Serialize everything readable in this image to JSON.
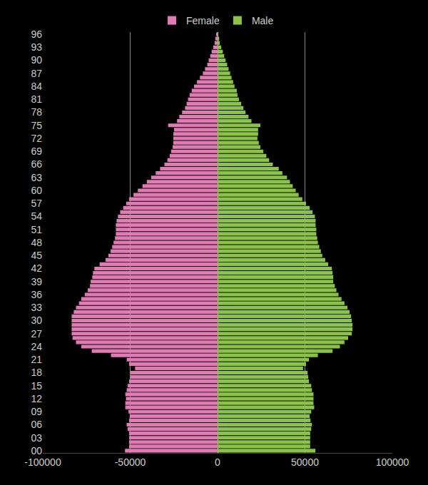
{
  "chart_data": {
    "type": "bar",
    "orientation": "horizontal",
    "stacked": true,
    "grid": true,
    "legend": "top",
    "categories": [
      "00",
      null,
      null,
      "03",
      null,
      null,
      "06",
      null,
      null,
      "09",
      null,
      null,
      "12",
      null,
      null,
      "15",
      null,
      null,
      "18",
      null,
      null,
      "21",
      null,
      null,
      "24",
      null,
      null,
      "27",
      null,
      null,
      "30",
      null,
      null,
      "33",
      null,
      null,
      "36",
      null,
      null,
      "39",
      null,
      null,
      "42",
      null,
      null,
      "45",
      null,
      null,
      "48",
      null,
      null,
      "51",
      null,
      null,
      "54",
      null,
      null,
      "57",
      null,
      null,
      "60",
      null,
      null,
      "63",
      null,
      null,
      "66",
      null,
      null,
      "69",
      null,
      null,
      "72",
      null,
      null,
      "75",
      null,
      null,
      "78",
      null,
      null,
      "81",
      null,
      null,
      "84",
      null,
      null,
      "87",
      null,
      null,
      "90",
      null,
      null,
      "93",
      null,
      null,
      "96"
    ],
    "series": [
      {
        "name": "Female",
        "color": "#e07bb4",
        "values": [
          -53000,
          -50600,
          -50600,
          -50600,
          -50600,
          -51500,
          -52000,
          -50600,
          -50200,
          -51000,
          -52800,
          -52800,
          -52400,
          -52800,
          -52000,
          -51500,
          -50600,
          -49800,
          -49800,
          -47200,
          -50600,
          -52000,
          -61000,
          -72000,
          -78000,
          -81000,
          -83000,
          -83500,
          -83500,
          -83500,
          -83500,
          -83500,
          -82300,
          -81000,
          -79300,
          -78000,
          -76000,
          -74300,
          -73000,
          -72600,
          -71700,
          -71300,
          -70500,
          -67500,
          -64100,
          -62500,
          -61200,
          -60300,
          -59500,
          -58700,
          -58200,
          -58200,
          -58200,
          -57800,
          -57000,
          -55700,
          -54000,
          -52300,
          -50600,
          -48100,
          -45600,
          -43000,
          -40500,
          -38000,
          -35400,
          -32900,
          -30400,
          -28700,
          -27400,
          -26600,
          -25700,
          -25300,
          -25300,
          -25300,
          -24900,
          -28300,
          -23200,
          -21900,
          -20300,
          -18600,
          -17700,
          -16900,
          -16000,
          -14800,
          -13500,
          -11800,
          -10100,
          -8400,
          -7200,
          -5900,
          -5100,
          -4200,
          -3400,
          -2500,
          -1700,
          -1300,
          -800
        ]
      },
      {
        "name": "Male",
        "color": "#8bc34a",
        "values": [
          56000,
          53000,
          53000,
          53000,
          53000,
          53600,
          54000,
          53200,
          52700,
          53600,
          55300,
          54900,
          54900,
          54900,
          54000,
          53600,
          52300,
          51900,
          51500,
          48900,
          50600,
          52300,
          57400,
          65800,
          70000,
          72600,
          74700,
          76800,
          77200,
          77200,
          76800,
          76400,
          75500,
          74300,
          72600,
          70900,
          69200,
          68000,
          67100,
          66200,
          66200,
          65800,
          65400,
          63300,
          61600,
          59900,
          59100,
          58200,
          57400,
          57000,
          56500,
          56500,
          56100,
          56100,
          55700,
          54400,
          52700,
          50600,
          48500,
          46400,
          44700,
          43000,
          41400,
          39700,
          37100,
          35000,
          31600,
          29500,
          27900,
          26200,
          24500,
          23600,
          22800,
          23200,
          23200,
          24500,
          19400,
          17700,
          16000,
          14800,
          13500,
          12200,
          11400,
          11000,
          9700,
          8900,
          8000,
          7200,
          6300,
          5500,
          4600,
          3800,
          3000,
          2100,
          1300,
          900,
          400
        ]
      }
    ],
    "xlim": [
      -100000,
      100000
    ],
    "xticks": [
      -100000,
      -50000,
      0,
      50000,
      100000
    ]
  }
}
